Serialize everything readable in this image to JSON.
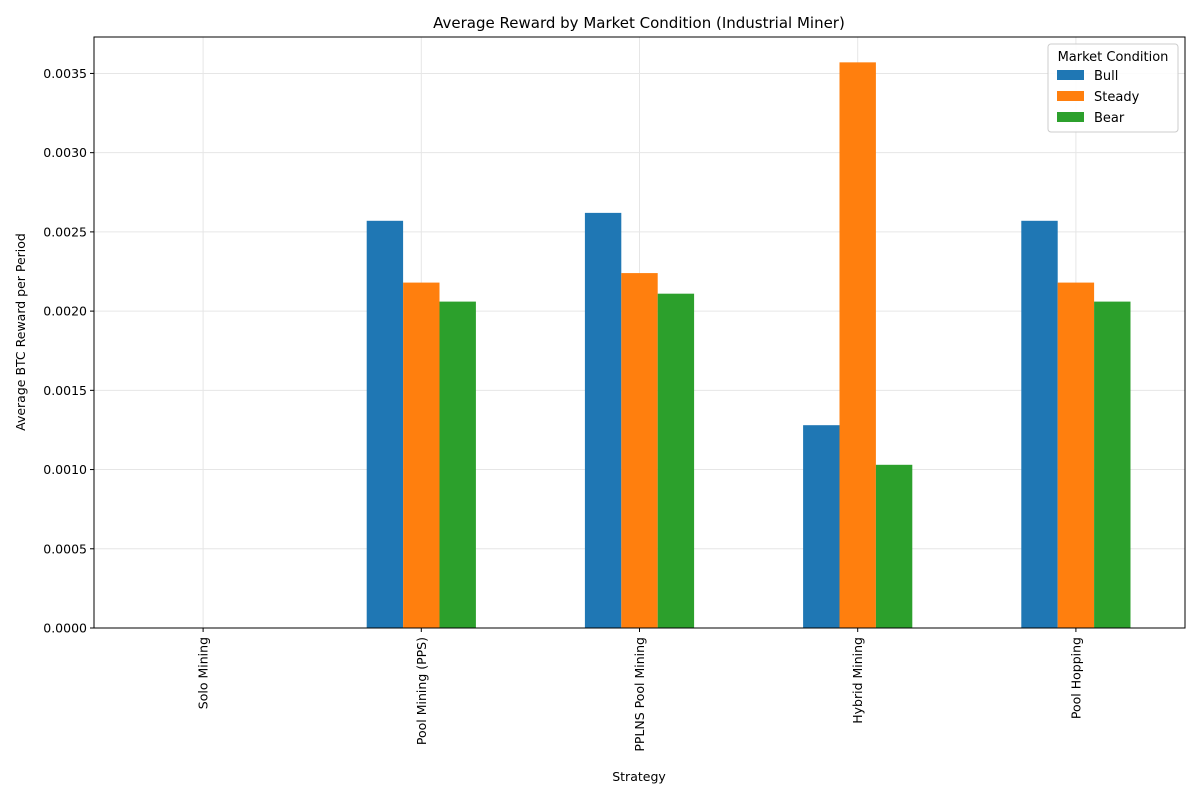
{
  "chart_data": {
    "type": "bar",
    "title": "Average Reward by Market Condition (Industrial Miner)",
    "xlabel": "Strategy",
    "ylabel": "Average BTC Reward per Period",
    "categories": [
      "Solo Mining",
      "Pool Mining (PPS)",
      "PPLNS Pool Mining",
      "Hybrid Mining",
      "Pool Hopping"
    ],
    "series": [
      {
        "name": "Bull",
        "color": "#1f77b4",
        "values": [
          0,
          0.00257,
          0.00262,
          0.00128,
          0.00257
        ]
      },
      {
        "name": "Steady",
        "color": "#ff7f0e",
        "values": [
          0,
          0.00218,
          0.00224,
          0.00357,
          0.00218
        ]
      },
      {
        "name": "Bear",
        "color": "#2ca02c",
        "values": [
          0,
          0.00206,
          0.00211,
          0.00103,
          0.00206
        ]
      }
    ],
    "ylim": [
      0,
      0.00373
    ],
    "yticks": [
      "0.0000",
      "0.0005",
      "0.0010",
      "0.0015",
      "0.0020",
      "0.0025",
      "0.0030",
      "0.0035"
    ],
    "grid": true,
    "legend": {
      "title": "Market Condition",
      "position": "top-right"
    }
  }
}
